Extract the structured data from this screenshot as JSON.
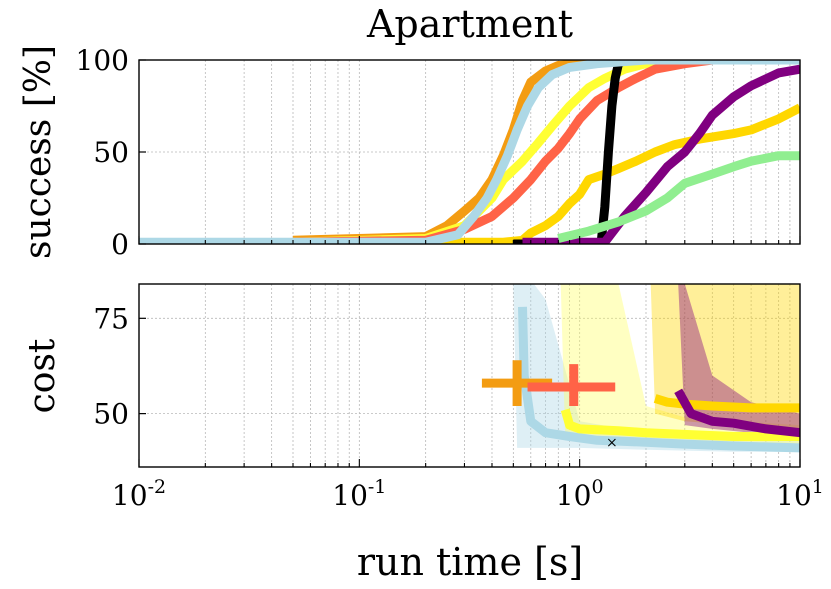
{
  "chart_data": {
    "title": "Apartment",
    "type": "line",
    "xlabel": "run time [s]",
    "xscale": "log",
    "xlim": [
      0.01,
      10
    ],
    "x_ticks": [
      {
        "value": 0.01,
        "base": "10",
        "exp": "-2"
      },
      {
        "value": 0.1,
        "base": "10",
        "exp": "-1"
      },
      {
        "value": 1,
        "base": "10",
        "exp": "0"
      },
      {
        "value": 10,
        "base": "10",
        "exp": "1"
      }
    ],
    "grid": true,
    "panels": [
      {
        "id": "success",
        "ylabel": "success [%]",
        "ylim": [
          0,
          100
        ],
        "yticks": [
          0,
          50,
          100
        ],
        "series": [
          {
            "color": "#f39c12",
            "points": [
              [
                0.05,
                2
              ],
              [
                0.2,
                4
              ],
              [
                0.25,
                10
              ],
              [
                0.3,
                18
              ],
              [
                0.35,
                25
              ],
              [
                0.4,
                35
              ],
              [
                0.45,
                48
              ],
              [
                0.5,
                62
              ],
              [
                0.55,
                78
              ],
              [
                0.6,
                88
              ],
              [
                0.7,
                94
              ],
              [
                0.8,
                97
              ],
              [
                1.0,
                98
              ],
              [
                1.5,
                99
              ],
              [
                2.0,
                100
              ],
              [
                10,
                100
              ]
            ]
          },
          {
            "color": "#ffd700",
            "points": [
              [
                0.05,
                1
              ],
              [
                0.45,
                1
              ],
              [
                0.55,
                2
              ],
              [
                0.6,
                6
              ],
              [
                0.7,
                10
              ],
              [
                0.8,
                15
              ],
              [
                0.9,
                22
              ],
              [
                1.0,
                27
              ],
              [
                1.1,
                35
              ],
              [
                1.3,
                38
              ],
              [
                1.5,
                41
              ],
              [
                1.8,
                45
              ],
              [
                2.2,
                50
              ],
              [
                2.7,
                54
              ],
              [
                3.5,
                57
              ],
              [
                5.0,
                60
              ],
              [
                6.0,
                62
              ],
              [
                8.0,
                68
              ],
              [
                10,
                74
              ]
            ]
          },
          {
            "color": "#ffff33",
            "points": [
              [
                0.05,
                1
              ],
              [
                0.2,
                3
              ],
              [
                0.3,
                10
              ],
              [
                0.4,
                25
              ],
              [
                0.45,
                35
              ],
              [
                0.55,
                45
              ],
              [
                0.65,
                55
              ],
              [
                0.75,
                64
              ],
              [
                0.9,
                75
              ],
              [
                1.1,
                85
              ],
              [
                1.3,
                90
              ],
              [
                1.6,
                95
              ],
              [
                2.0,
                98
              ],
              [
                2.5,
                100
              ],
              [
                10,
                100
              ]
            ]
          },
          {
            "color": "#ff6347",
            "points": [
              [
                0.05,
                1
              ],
              [
                0.2,
                2
              ],
              [
                0.3,
                8
              ],
              [
                0.4,
                15
              ],
              [
                0.5,
                25
              ],
              [
                0.6,
                35
              ],
              [
                0.7,
                45
              ],
              [
                0.8,
                52
              ],
              [
                0.9,
                60
              ],
              [
                1.0,
                68
              ],
              [
                1.2,
                78
              ],
              [
                1.5,
                85
              ],
              [
                1.8,
                90
              ],
              [
                2.2,
                95
              ],
              [
                3.0,
                98
              ],
              [
                4.0,
                100
              ],
              [
                10,
                100
              ]
            ]
          },
          {
            "color": "#000000",
            "points": [
              [
                0.5,
                0
              ],
              [
                1.25,
                0
              ],
              [
                1.3,
                20
              ],
              [
                1.35,
                50
              ],
              [
                1.4,
                75
              ],
              [
                1.45,
                90
              ],
              [
                1.5,
                98
              ],
              [
                1.6,
                100
              ],
              [
                10,
                100
              ]
            ]
          },
          {
            "color": "#800080",
            "points": [
              [
                0.55,
                1
              ],
              [
                1.3,
                1
              ],
              [
                1.6,
                15
              ],
              [
                2.0,
                28
              ],
              [
                2.5,
                42
              ],
              [
                3.0,
                50
              ],
              [
                3.5,
                60
              ],
              [
                4.0,
                70
              ],
              [
                5.0,
                80
              ],
              [
                6.0,
                86
              ],
              [
                8.0,
                93
              ],
              [
                10,
                95
              ]
            ]
          },
          {
            "color": "#90ee90",
            "points": [
              [
                0.8,
                3
              ],
              [
                1.1,
                7
              ],
              [
                1.5,
                12
              ],
              [
                2.0,
                18
              ],
              [
                2.5,
                25
              ],
              [
                3.0,
                33
              ],
              [
                4.0,
                38
              ],
              [
                5.0,
                42
              ],
              [
                6.0,
                45
              ],
              [
                8.0,
                48
              ],
              [
                10,
                48
              ]
            ]
          },
          {
            "color": "#add8e6",
            "points": [
              [
                0.01,
                1
              ],
              [
                0.2,
                1
              ],
              [
                0.28,
                5
              ],
              [
                0.33,
                15
              ],
              [
                0.38,
                25
              ],
              [
                0.42,
                35
              ],
              [
                0.47,
                48
              ],
              [
                0.52,
                62
              ],
              [
                0.58,
                75
              ],
              [
                0.65,
                85
              ],
              [
                0.75,
                92
              ],
              [
                0.9,
                96
              ],
              [
                1.2,
                98
              ],
              [
                2.0,
                100
              ],
              [
                10,
                100
              ]
            ]
          }
        ]
      },
      {
        "id": "cost",
        "ylabel": "cost",
        "ylim": [
          36,
          84
        ],
        "yticks": [
          50,
          75
        ],
        "bands": [
          {
            "color": "#add8e6",
            "x": [
              0.5,
              0.52,
              0.56,
              0.62,
              0.7,
              1.0,
              2.0,
              5.0,
              10.0
            ],
            "lower": [
              84,
              41,
              41,
              41,
              41,
              41,
              40.5,
              40,
              40
            ],
            "upper": [
              84,
              84,
              84,
              84,
              80,
              48,
              45,
              44,
              43
            ]
          },
          {
            "color": "#ffff66",
            "x": [
              0.82,
              0.86,
              1.0,
              1.2,
              1.5,
              2.0,
              3.0,
              5.0,
              10.0
            ],
            "lower": [
              84,
              44,
              43,
              43,
              42,
              42,
              42,
              42,
              42
            ],
            "upper": [
              84,
              84,
              84,
              84,
              84,
              52,
              49,
              48,
              47
            ]
          },
          {
            "color": "#ffd700",
            "x": [
              2.1,
              2.2,
              3.0,
              5.0,
              10.0
            ],
            "lower": [
              84,
              50,
              48,
              47,
              46
            ],
            "upper": [
              84,
              84,
              84,
              84,
              84
            ]
          },
          {
            "color": "#800080",
            "x": [
              2.8,
              3.0,
              4.0,
              6.0,
              10.0
            ],
            "lower": [
              84,
              47,
              46,
              45,
              43
            ],
            "upper": [
              84,
              84,
              60,
              53,
              50
            ]
          }
        ],
        "series": [
          {
            "color": "#add8e6",
            "points": [
              [
                0.55,
                78
              ],
              [
                0.56,
                60
              ],
              [
                0.6,
                48
              ],
              [
                0.7,
                45
              ],
              [
                0.9,
                44
              ],
              [
                1.2,
                43
              ],
              [
                2.0,
                42.5
              ],
              [
                3.0,
                42
              ],
              [
                5.0,
                41.5
              ],
              [
                10,
                41
              ]
            ]
          },
          {
            "color": "#ffff33",
            "points": [
              [
                0.86,
                51
              ],
              [
                0.9,
                47
              ],
              [
                1.0,
                46
              ],
              [
                1.5,
                45.5
              ],
              [
                2.0,
                45
              ],
              [
                5.0,
                44
              ],
              [
                10,
                44
              ]
            ]
          },
          {
            "color": "#ffd700",
            "points": [
              [
                2.2,
                54
              ],
              [
                2.5,
                53
              ],
              [
                3.0,
                52.5
              ],
              [
                4.0,
                52
              ],
              [
                6.0,
                51.5
              ],
              [
                10,
                51.5
              ]
            ]
          },
          {
            "color": "#800080",
            "points": [
              [
                2.8,
                56
              ],
              [
                3.2,
                50
              ],
              [
                4.0,
                48
              ],
              [
                5.0,
                47.5
              ],
              [
                7.0,
                46
              ],
              [
                10,
                45
              ]
            ]
          }
        ],
        "crosses": [
          {
            "color": "#f39c12",
            "x": 0.52,
            "y": 58,
            "xerr": [
              0.36,
              0.75
            ],
            "yerr": [
              52,
              64
            ]
          },
          {
            "color": "#ff6347",
            "x": 0.94,
            "y": 57,
            "xerr": [
              0.58,
              1.45
            ],
            "yerr": [
              52,
              63
            ]
          }
        ],
        "markers": [
          {
            "symbol": "×",
            "x": 1.4,
            "y": 42.5
          }
        ]
      }
    ]
  }
}
